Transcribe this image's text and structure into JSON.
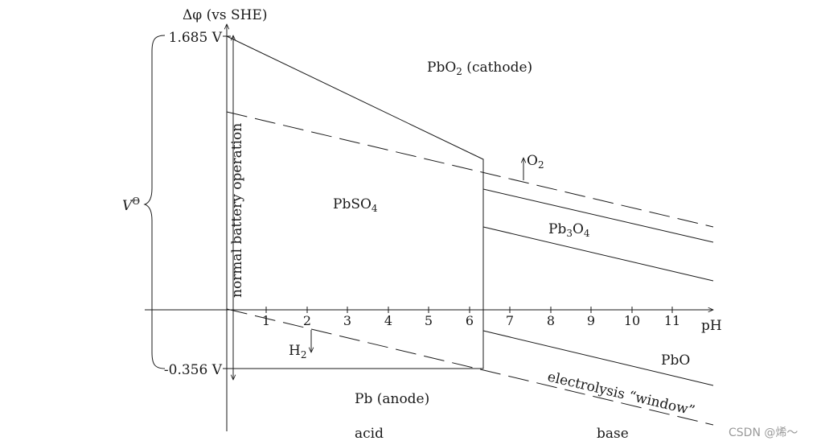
{
  "axes": {
    "y_label": "Δφ (vs SHE)",
    "x_label": "pH",
    "x_ticks": [
      "1",
      "2",
      "3",
      "4",
      "5",
      "6",
      "7",
      "8",
      "9",
      "10",
      "11"
    ],
    "y_marks": [
      "1.685 V",
      "-0.356 V"
    ]
  },
  "labels": {
    "v_theta": "V",
    "v_theta_sup": "Θ",
    "pbo2_main": "PbO",
    "pbo2_sub": "2",
    "pbo2_rest": " (cathode)",
    "pbso4_main": "PbSO",
    "pbso4_sub": "4",
    "pb3o4_a": "Pb",
    "pb3o4_sub1": "3",
    "pb3o4_b": "O",
    "pb3o4_sub2": "4",
    "pbo": "PbO",
    "pb_anode": "Pb (anode)",
    "o2_main": "O",
    "o2_sub": "2",
    "h2_main": "H",
    "h2_sub": "2",
    "normal_op": "normal battery operation",
    "electrolysis": "electrolysis “window”",
    "acid": "acid",
    "base": "base"
  },
  "watermark": "CSDN @烯～"
}
